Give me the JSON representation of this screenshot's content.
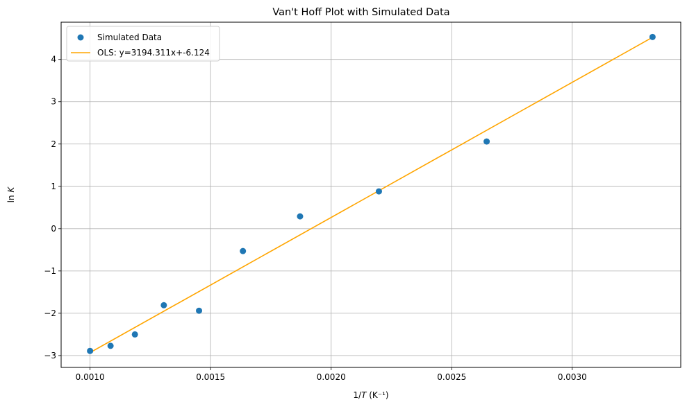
{
  "chart_data": {
    "type": "scatter",
    "title": "Van't Hoff Plot with Simulated Data",
    "xlabel": "1/T (K⁻¹)",
    "ylabel": "ln K",
    "xlim": [
      0.00088,
      0.00345
    ],
    "ylim": [
      -3.28,
      4.88
    ],
    "xticks": [
      0.001,
      0.0015,
      0.002,
      0.0025,
      0.003
    ],
    "xtick_labels": [
      "0.0010",
      "0.0015",
      "0.0020",
      "0.0025",
      "0.0030"
    ],
    "yticks": [
      -3,
      -2,
      -1,
      0,
      1,
      2,
      3,
      4
    ],
    "ytick_labels": [
      "−3",
      "−2",
      "−1",
      "0",
      "1",
      "2",
      "3",
      "4"
    ],
    "grid": true,
    "legend_position": "top-left",
    "series": [
      {
        "name": "Simulated Data",
        "kind": "scatter",
        "color": "#1f77b4",
        "x": [
          0.001,
          0.001085,
          0.001186,
          0.001306,
          0.001452,
          0.001634,
          0.001871,
          0.002198,
          0.002645,
          0.003333
        ],
        "y": [
          -2.89,
          -2.77,
          -2.5,
          -1.81,
          -1.94,
          -0.53,
          0.29,
          0.88,
          2.06,
          4.53
        ]
      },
      {
        "name": "OLS: y=3194.311x+-6.124",
        "kind": "line",
        "color": "#ffa500",
        "slope": 3194.311,
        "intercept": -6.124,
        "x_range": [
          0.001,
          0.003333
        ]
      }
    ]
  }
}
